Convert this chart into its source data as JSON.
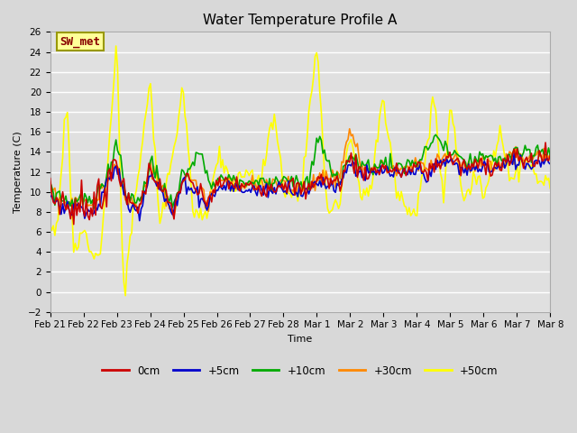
{
  "title": "Water Temperature Profile A",
  "xlabel": "Time",
  "ylabel": "Temperature (C)",
  "ylim": [
    -2,
    26
  ],
  "yticks": [
    -2,
    0,
    2,
    4,
    6,
    8,
    10,
    12,
    14,
    16,
    18,
    20,
    22,
    24,
    26
  ],
  "background_color": "#d8d8d8",
  "plot_bg_color": "#e0e0e0",
  "annotation_text": "SW_met",
  "annotation_bg": "#ffff99",
  "annotation_fg": "#880000",
  "annotation_edge": "#999900",
  "series_colors": {
    "0cm": "#cc0000",
    "+5cm": "#0000cc",
    "+10cm": "#00aa00",
    "+30cm": "#ff8800",
    "+50cm": "#ffff00"
  },
  "figsize": [
    6.4,
    4.8
  ],
  "dpi": 100,
  "x_tick_labels": [
    "Feb 21",
    "Feb 22",
    "Feb 23",
    "Feb 24",
    "Feb 25",
    "Feb 26",
    "Feb 27",
    "Feb 28",
    "Mar 1",
    "Mar 2",
    "Mar 3",
    "Mar 4",
    "Mar 5",
    "Mar 6",
    "Mar 7",
    "Mar 8"
  ],
  "legend_entries": [
    "0cm",
    "+5cm",
    "+10cm",
    "+30cm",
    "+50cm"
  ]
}
